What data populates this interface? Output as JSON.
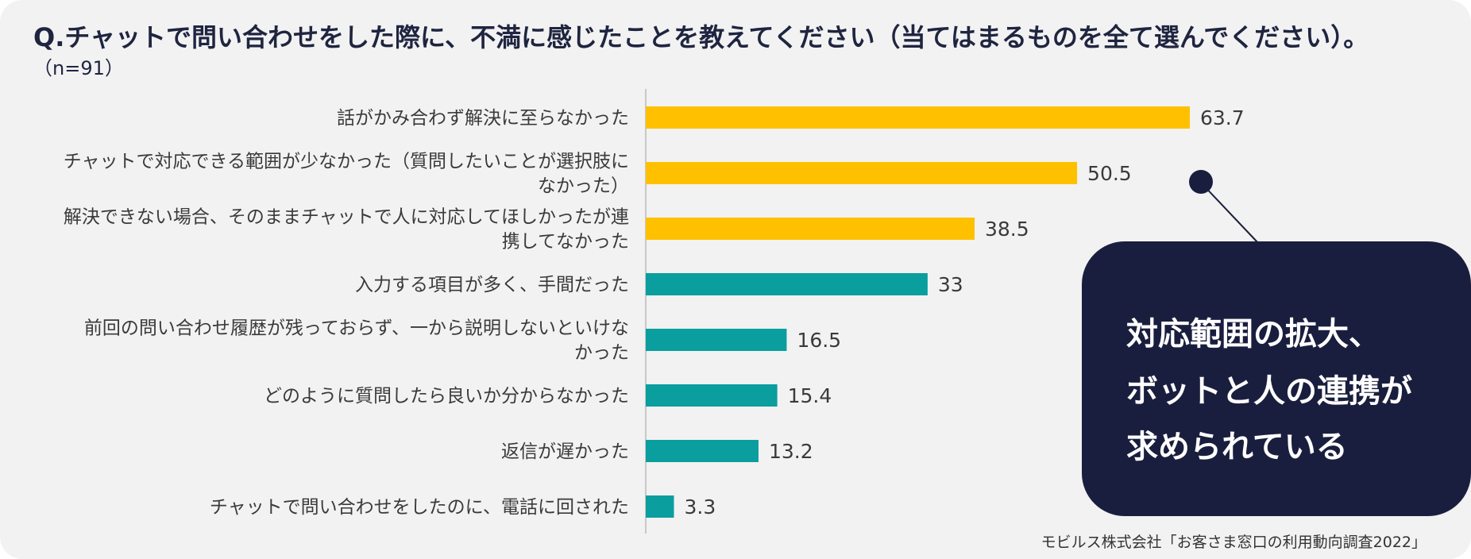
{
  "title": "Q.チャットで問い合わせをした際に、不満に感じたことを教えてください（当てはまるものを全て選んでください）。",
  "subtitle": "（n=91）",
  "callout": {
    "lines": [
      "対応範囲の拡大、",
      "ボットと人の連携が",
      "求められている"
    ]
  },
  "source": "モビルス株式会社「お客さま窓口の利用動向調査2022」",
  "colors": {
    "highlight": "#ffc000",
    "normal": "#0a9e9e",
    "callout": "#1a1e3e"
  },
  "chart_data": {
    "type": "bar",
    "orientation": "horizontal",
    "categories": [
      [
        "話がかみ合わず解決に至らなかった"
      ],
      [
        "チャットで対応できる範囲が少なかった（質問したいことが選択肢に",
        "なかった）"
      ],
      [
        "解決できない場合、そのままチャットで人に対応してほしかったが連",
        "携してなかった"
      ],
      [
        "入力する項目が多く、手間だった"
      ],
      [
        "前回の問い合わせ履歴が残っておらず、一から説明しないといけな",
        "かった"
      ],
      [
        "どのように質問したら良いか分からなかった"
      ],
      [
        "返信が遅かった"
      ],
      [
        "チャットで問い合わせをしたのに、電話に回された"
      ]
    ],
    "values": [
      63.7,
      50.5,
      38.5,
      33,
      16.5,
      15.4,
      13.2,
      3.3
    ],
    "value_labels": [
      "63.7",
      "50.5",
      "38.5",
      "33",
      "16.5",
      "15.4",
      "13.2",
      "3.3"
    ],
    "highlighted": [
      true,
      true,
      true,
      false,
      false,
      false,
      false,
      false
    ],
    "xlim": [
      0,
      100
    ],
    "grid": false,
    "legend": "none"
  }
}
